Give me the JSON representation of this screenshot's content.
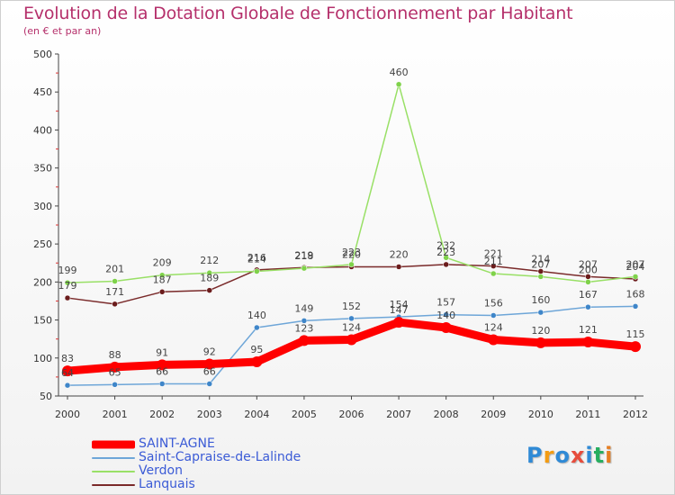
{
  "chart_data": {
    "type": "line",
    "title": "Evolution de la Dotation Globale de Fonctionnement par Habitant",
    "subtitle": "(en € et par an)",
    "x": [
      "2000",
      "2001",
      "2002",
      "2003",
      "2004",
      "2005",
      "2006",
      "2007",
      "2008",
      "2009",
      "2010",
      "2011",
      "2012"
    ],
    "ylim": [
      50,
      500
    ],
    "yticks": [
      50,
      100,
      150,
      200,
      250,
      300,
      350,
      400,
      450,
      500
    ],
    "grid": false,
    "legend_position": "bottom-left",
    "series": [
      {
        "name": "SAINT-AGNE",
        "color": "#ff0000",
        "values": [
          83,
          88,
          91,
          92,
          95,
          123,
          124,
          147,
          140,
          124,
          120,
          121,
          115
        ]
      },
      {
        "name": "Saint-Capraise-de-Lalinde",
        "color": "#6ea6d8",
        "values": [
          64,
          65,
          66,
          66,
          140,
          149,
          152,
          154,
          157,
          156,
          160,
          167,
          168
        ]
      },
      {
        "name": "Verdon",
        "color": "#99e066",
        "values": [
          199,
          201,
          209,
          212,
          214,
          218,
          223,
          460,
          232,
          211,
          207,
          200,
          207
        ]
      },
      {
        "name": "Lanquais",
        "color": "#7a2a2a",
        "values": [
          179,
          171,
          187,
          189,
          216,
          219,
          220,
          220,
          223,
          221,
          214,
          207,
          204
        ]
      }
    ]
  },
  "logo": {
    "letters": [
      "P",
      "r",
      "o",
      "x",
      "i",
      "t",
      "i"
    ],
    "colors": [
      "#2f8ad6",
      "#f39c12",
      "#2f8ad6",
      "#e74c3c",
      "#2f8ad6",
      "#27ae60",
      "#e67e22"
    ]
  }
}
